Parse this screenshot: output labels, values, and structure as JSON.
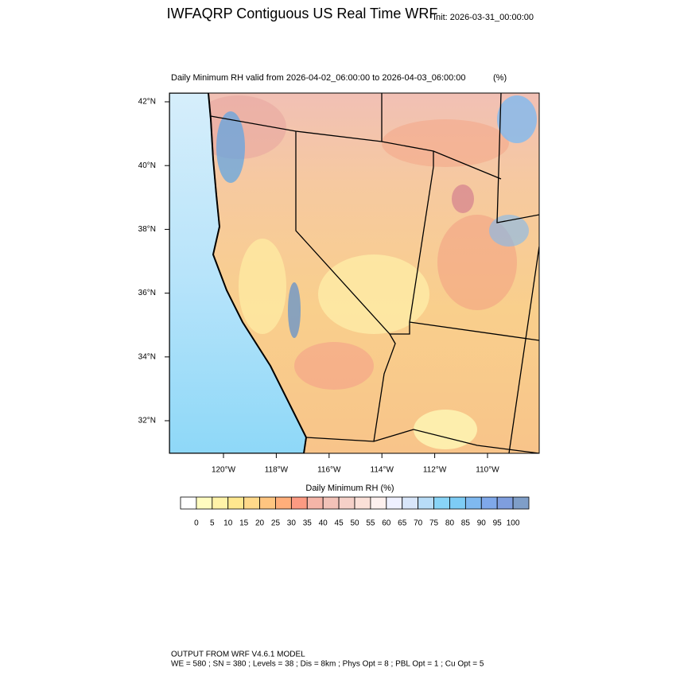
{
  "header": {
    "title": "IWFAQRP Contiguous US Real Time WRF",
    "init": "Init: 2026-03-31_00:00:00"
  },
  "map": {
    "subtitle": "Daily Minimum RH valid from 2026-04-02_06:00:00 to 2026-04-03_06:00:00",
    "units": "(%)",
    "lat_labels": [
      "42°N",
      "40°N",
      "38°N",
      "36°N",
      "34°N",
      "32°N"
    ],
    "lon_labels": [
      "120°W",
      "118°W",
      "116°W",
      "114°W",
      "112°W",
      "110°W"
    ]
  },
  "colorbar": {
    "title": "Daily Minimum RH  (%)",
    "labels": [
      "0",
      "5",
      "10",
      "15",
      "20",
      "25",
      "30",
      "35",
      "40",
      "45",
      "50",
      "55",
      "60",
      "65",
      "70",
      "75",
      "80",
      "85",
      "90",
      "95",
      "100"
    ],
    "colors": [
      "#ffffff",
      "#fffcc0",
      "#fff3a8",
      "#ffe88f",
      "#ffd98a",
      "#ffc580",
      "#ffae7a",
      "#fc9a82",
      "#f5b5a8",
      "#f2c2b8",
      "#f5d0c8",
      "#fbe0d8",
      "#fdf0ee",
      "#eef0ff",
      "#d8e6fa",
      "#b8dcf7",
      "#88d4f7",
      "#7dccf5",
      "#7fb9f0",
      "#7fa8ea",
      "#7f9ede",
      "#7f9ec8"
    ]
  },
  "footer": {
    "line1": "OUTPUT FROM WRF V4.6.1 MODEL",
    "line2": "WE = 580 ; SN = 380 ; Levels = 38 ; Dis = 8km ; Phys Opt = 8 ; PBL Opt = 1 ; Cu Opt = 5"
  }
}
